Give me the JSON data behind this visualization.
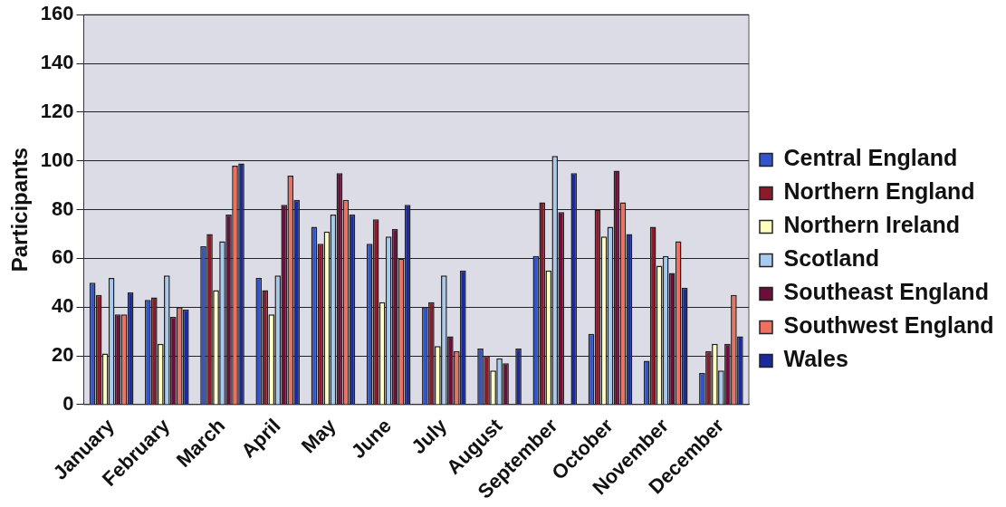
{
  "chart_data": {
    "type": "bar",
    "ylabel": "Participants",
    "categories": [
      "January",
      "February",
      "March",
      "April",
      "May",
      "June",
      "July",
      "August",
      "September",
      "October",
      "November",
      "December"
    ],
    "series": [
      {
        "name": "Central England",
        "color": "#3355cc",
        "values": [
          50,
          43,
          65,
          52,
          73,
          66,
          40,
          23,
          61,
          29,
          18,
          13
        ]
      },
      {
        "name": "Northern England",
        "color": "#8b1a2b",
        "values": [
          45,
          44,
          70,
          47,
          66,
          76,
          42,
          20,
          83,
          80,
          73,
          22
        ]
      },
      {
        "name": "Northern Ireland",
        "color": "#ffffc0",
        "values": [
          21,
          25,
          47,
          37,
          71,
          42,
          24,
          14,
          55,
          69,
          57,
          25
        ]
      },
      {
        "name": "Scotland",
        "color": "#a6caf0",
        "values": [
          52,
          53,
          67,
          53,
          78,
          69,
          53,
          19,
          102,
          73,
          61,
          14
        ]
      },
      {
        "name": "Southeast England",
        "color": "#6b0f3a",
        "values": [
          37,
          36,
          78,
          82,
          95,
          72,
          28,
          17,
          79,
          96,
          54,
          25
        ]
      },
      {
        "name": "Southwest England",
        "color": "#f07060",
        "values": [
          37,
          40,
          98,
          94,
          84,
          60,
          22,
          null,
          null,
          83,
          67,
          45
        ]
      },
      {
        "name": "Wales",
        "color": "#1a2a9a",
        "values": [
          46,
          39,
          99,
          84,
          78,
          82,
          55,
          23,
          95,
          70,
          48,
          28
        ]
      }
    ],
    "ylim": [
      0,
      160
    ],
    "yticks": [
      0,
      20,
      40,
      60,
      80,
      100,
      120,
      140,
      160
    ],
    "grid": "y",
    "legend": "right"
  }
}
